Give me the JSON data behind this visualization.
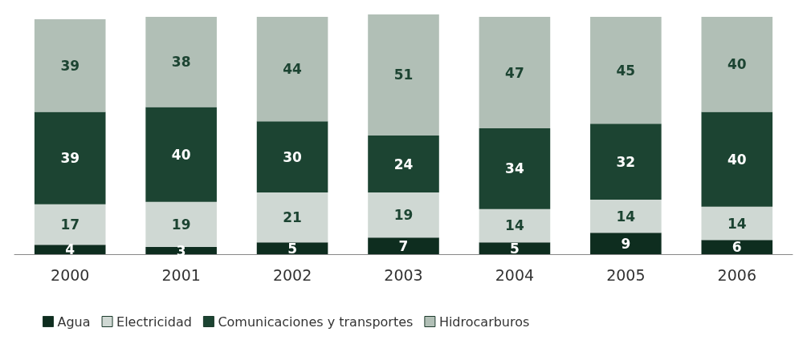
{
  "chart_data": {
    "type": "bar",
    "stacked": true,
    "data_labels": true,
    "legend": "bottom left",
    "categories": [
      "2000",
      "2001",
      "2002",
      "2003",
      "2004",
      "2005",
      "2006"
    ],
    "series": [
      {
        "name": "Agua",
        "color": "#0e2d1f",
        "values": [
          4,
          3,
          5,
          7,
          5,
          9,
          6
        ]
      },
      {
        "name": "Electricidad",
        "color": "#cfd8d3",
        "values": [
          17,
          19,
          21,
          19,
          14,
          14,
          14
        ]
      },
      {
        "name": "Comunicaciones y transportes",
        "color": "#1c4432",
        "values": [
          39,
          40,
          30,
          24,
          34,
          32,
          40
        ]
      },
      {
        "name": "Hidrocarburos",
        "color": "#b1bfb6",
        "values": [
          39,
          38,
          44,
          51,
          47,
          45,
          40
        ]
      }
    ]
  }
}
